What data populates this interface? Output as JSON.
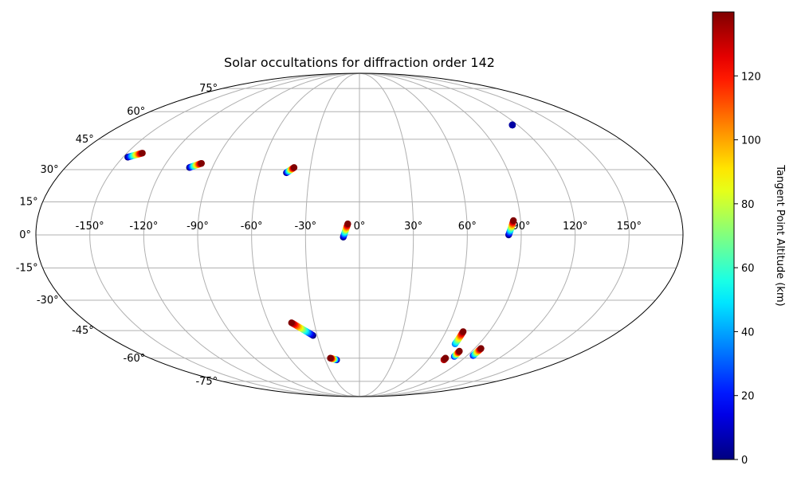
{
  "chart_data": {
    "type": "scatter",
    "projection": "mollweide",
    "title": "Solar occultations for diffraction order 142",
    "grid": true,
    "lon_ticks": [
      "-150°",
      "-120°",
      "-90°",
      "-60°",
      "-30°",
      "0°",
      "30°",
      "60°",
      "90°",
      "120°",
      "150°"
    ],
    "lon_tick_values": [
      -150,
      -120,
      -90,
      -60,
      -30,
      0,
      30,
      60,
      90,
      120,
      150
    ],
    "lat_ticks": [
      "-75°",
      "-60°",
      "-45°",
      "-30°",
      "-15°",
      "0°",
      "15°",
      "30°",
      "45°",
      "60°",
      "75°"
    ],
    "lat_tick_values": [
      -75,
      -60,
      -45,
      -30,
      -15,
      0,
      15,
      30,
      45,
      60,
      75
    ],
    "colorbar": {
      "label": "Tangent Point Altitude (km)",
      "min": 0,
      "max": 140,
      "colormap": "jet",
      "ticks": [
        0,
        20,
        40,
        60,
        80,
        100,
        120
      ],
      "tick_labels": [
        "0",
        "20",
        "40",
        "60",
        "80",
        "100",
        "120"
      ]
    },
    "tracks": [
      {
        "start": [
          -147.0,
          36.0
        ],
        "end": [
          -140.0,
          38.0
        ],
        "alt_range": [
          0,
          140
        ]
      },
      {
        "start": [
          -104.0,
          31.0
        ],
        "end": [
          -98.0,
          33.0
        ],
        "alt_range": [
          0,
          140
        ]
      },
      {
        "start": [
          -44.0,
          28.5
        ],
        "end": [
          -40.0,
          31.0
        ],
        "alt_range": [
          0,
          140
        ]
      },
      {
        "start": [
          -9.0,
          -1.0
        ],
        "end": [
          -6.5,
          5.0
        ],
        "alt_range": [
          0,
          140
        ]
      },
      {
        "start": [
          83.0,
          0.0
        ],
        "end": [
          86.0,
          6.5
        ],
        "alt_range": [
          0,
          140
        ]
      },
      {
        "start": [
          116.0,
          52.5
        ],
        "end": [
          116.0,
          52.5
        ],
        "alt_range": [
          0,
          5
        ]
      },
      {
        "start": [
          -33.0,
          -47.5
        ],
        "end": [
          -45.0,
          -41.0
        ],
        "alt_range": [
          0,
          140
        ]
      },
      {
        "start": [
          -20.0,
          -61.0
        ],
        "end": [
          -25.0,
          -60.0
        ],
        "alt_range": [
          0,
          140
        ]
      },
      {
        "start": [
          72.0,
          -52.0
        ],
        "end": [
          72.0,
          -45.5
        ],
        "alt_range": [
          35,
          140
        ]
      },
      {
        "start": [
          80.0,
          -59.0
        ],
        "end": [
          80.0,
          -56.0
        ],
        "alt_range": [
          20,
          140
        ]
      },
      {
        "start": [
          95.0,
          -58.5
        ],
        "end": [
          95.0,
          -54.5
        ],
        "alt_range": [
          20,
          140
        ]
      },
      {
        "start": [
          74.0,
          -61.0
        ],
        "end": [
          74.0,
          -60.0
        ],
        "alt_range": [
          130,
          140
        ]
      }
    ]
  }
}
